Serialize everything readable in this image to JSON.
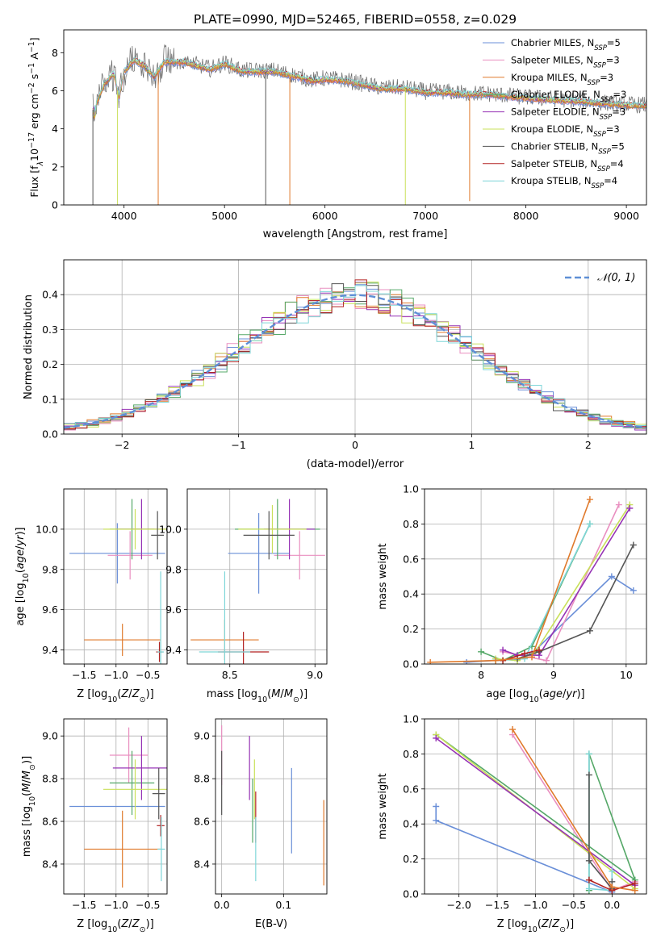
{
  "page_title": "PLATE=0990, MJD=52465, FIBERID=0558, z=0.029",
  "colors": {
    "series": [
      "#6a8fd8",
      "#e98fc0",
      "#e07a2c",
      "#55a868",
      "#9633b5",
      "#c9e05a",
      "#555555",
      "#b22222",
      "#7fd6d8"
    ],
    "gaussian": "#5f8fd6",
    "grid": "#b0b0b0"
  },
  "legend": {
    "model_names": [
      "Chabrier MILES, N",
      "Salpeter MILES, N",
      "Kroupa MILES, N",
      "Chabrier ELODIE, N",
      "Salpeter ELODIE, N",
      "Kroupa ELODIE, N",
      "Chabrier STELIB, N",
      "Salpeter STELIB, N",
      "Kroupa STELIB, N"
    ],
    "n_sub": "SSP",
    "n_values": [
      "=5",
      "=3",
      "=3",
      "=3",
      "=3",
      "=3",
      "=5",
      "=4",
      "=4"
    ],
    "gaussian_label": "𝒩(0, 1)"
  },
  "chart_data": [
    {
      "id": "spectrum",
      "type": "line",
      "xlabel": "wavelength [Angstrom, rest frame]",
      "ylabel": "Flux [f",
      "xlim": [
        3400,
        9200
      ],
      "ylim": [
        0,
        9.2
      ],
      "xticks": [
        4000,
        5000,
        6000,
        7000,
        8000,
        9000
      ],
      "yticks": [
        0,
        2,
        4,
        6,
        8
      ],
      "x_knots": [
        3700,
        3800,
        3900,
        3950,
        4000,
        4100,
        4200,
        4300,
        4400,
        4600,
        4860,
        5000,
        5175,
        5300,
        5500,
        5890,
        6000,
        6200,
        6563,
        6800,
        7000,
        7200,
        7400,
        7600,
        8000,
        8300,
        8600,
        8800,
        9100
      ],
      "y_knots": [
        5.0,
        6.3,
        6.9,
        5.6,
        7.0,
        7.6,
        7.3,
        6.7,
        7.5,
        7.5,
        7.1,
        7.4,
        7.0,
        7.0,
        7.0,
        6.5,
        6.6,
        6.5,
        6.1,
        6.1,
        5.9,
        5.9,
        5.8,
        5.8,
        5.6,
        5.5,
        5.4,
        5.3,
        5.2
      ],
      "dips": [
        {
          "x": 3935,
          "y": 0,
          "series": 5
        },
        {
          "x": 4340,
          "y": 0,
          "series": 2
        },
        {
          "x": 5650,
          "y": 0,
          "series": 2
        },
        {
          "x": 6800,
          "y": 0,
          "series": 5
        },
        {
          "x": 7440,
          "y": 0.2,
          "series": 2
        },
        {
          "x": 3690,
          "y": 0,
          "series": 6
        },
        {
          "x": 5410,
          "y": 0,
          "series": 6
        }
      ]
    },
    {
      "id": "residual-histogram",
      "type": "histogram",
      "xlabel": "(data-model)/error",
      "ylabel": "Normed distribution",
      "xlim": [
        -2.5,
        2.5
      ],
      "ylim": [
        0,
        0.5
      ],
      "xticks": [
        -2,
        -1,
        0,
        1,
        2
      ],
      "yticks": [
        0,
        0.1,
        0.2,
        0.3,
        0.4
      ],
      "bin_width": 0.1,
      "gaussian": {
        "mean": 0,
        "sigma": 1
      }
    },
    {
      "id": "age-vs-metallicity",
      "type": "errorbar",
      "xlabel": "Z [log",
      "ylabel": "age  [log",
      "xlim": [
        -1.82,
        -0.2
      ],
      "ylim": [
        9.33,
        10.2
      ],
      "xticks": [
        -1.5,
        -1.0,
        -0.5
      ],
      "yticks": [
        9.4,
        9.6,
        9.8,
        10.0
      ],
      "points": [
        {
          "x": -0.98,
          "xerr": 0.75,
          "y": 9.88,
          "yerr": 0.15,
          "series": 0
        },
        {
          "x": -0.78,
          "xerr": 0.35,
          "y": 9.87,
          "yerr": 0.12,
          "series": 1
        },
        {
          "x": -0.9,
          "xerr": 0.6,
          "y": 9.45,
          "yerr": 0.08,
          "series": 2
        },
        {
          "x": -0.75,
          "xerr": 0.35,
          "y": 10.0,
          "yerr": 0.15,
          "series": 3
        },
        {
          "x": -0.6,
          "xerr": 0.4,
          "y": 10.0,
          "yerr": 0.15,
          "series": 4
        },
        {
          "x": -0.7,
          "xerr": 0.5,
          "y": 10.0,
          "yerr": 0.1,
          "series": 5
        },
        {
          "x": -0.35,
          "xerr": 0.1,
          "y": 9.97,
          "yerr": 0.12,
          "series": 6
        },
        {
          "x": -0.32,
          "xerr": 0.05,
          "y": 9.39,
          "yerr": 0.05,
          "series": 7
        },
        {
          "x": -0.3,
          "xerr": 0.05,
          "y": 9.39,
          "yerr": 0.4,
          "series": 8
        }
      ]
    },
    {
      "id": "age-vs-mass",
      "type": "errorbar",
      "xlabel": "mass [log",
      "ylabel": "",
      "xlim": [
        8.25,
        9.07
      ],
      "ylim": [
        9.33,
        10.2
      ],
      "xticks": [
        8.5,
        9.0
      ],
      "yticks": [
        9.4,
        9.6,
        9.8,
        10.0
      ],
      "points": [
        {
          "x": 8.67,
          "xerr": 0.18,
          "y": 9.88,
          "yerr": 0.2,
          "series": 0
        },
        {
          "x": 8.91,
          "xerr": 0.15,
          "y": 9.87,
          "yerr": 0.12,
          "series": 1
        },
        {
          "x": 8.47,
          "xerr": 0.2,
          "y": 9.45,
          "yerr": 0.1,
          "series": 2
        },
        {
          "x": 8.78,
          "xerr": 0.25,
          "y": 10.0,
          "yerr": 0.15,
          "series": 3
        },
        {
          "x": 8.85,
          "xerr": 0.15,
          "y": 10.0,
          "yerr": 0.15,
          "series": 4
        },
        {
          "x": 8.75,
          "xerr": 0.2,
          "y": 10.0,
          "yerr": 0.12,
          "series": 5
        },
        {
          "x": 8.73,
          "xerr": 0.15,
          "y": 9.97,
          "yerr": 0.12,
          "series": 6
        },
        {
          "x": 8.58,
          "xerr": 0.15,
          "y": 9.39,
          "yerr": 0.1,
          "series": 7
        },
        {
          "x": 8.47,
          "xerr": 0.15,
          "y": 9.39,
          "yerr": 0.4,
          "series": 8
        }
      ]
    },
    {
      "id": "mass-weight-vs-age",
      "type": "line",
      "xlabel": "age  [log",
      "ylabel": "mass weight",
      "xlim": [
        7.22,
        10.28
      ],
      "ylim": [
        0,
        1
      ],
      "xticks": [
        8,
        9,
        10
      ],
      "yticks": [
        0,
        0.2,
        0.4,
        0.6,
        0.8,
        1.0
      ],
      "series": [
        {
          "series": 0,
          "x": [
            7.8,
            8.5,
            8.7,
            9.8,
            10.1
          ],
          "y": [
            0.01,
            0.03,
            0.06,
            0.5,
            0.42
          ]
        },
        {
          "series": 1,
          "x": [
            8.3,
            8.9,
            9.9
          ],
          "y": [
            0.07,
            0.02,
            0.91
          ]
        },
        {
          "series": 2,
          "x": [
            7.3,
            8.2,
            8.7,
            9.5
          ],
          "y": [
            0.01,
            0.02,
            0.04,
            0.94
          ]
        },
        {
          "series": 3,
          "x": [
            8.0,
            8.3,
            8.7,
            9.5
          ],
          "y": [
            0.07,
            0.02,
            0.1,
            0.8
          ]
        },
        {
          "series": 4,
          "x": [
            8.3,
            8.5,
            8.8,
            10.05
          ],
          "y": [
            0.08,
            0.05,
            0.05,
            0.89
          ]
        },
        {
          "series": 5,
          "x": [
            8.2,
            8.5,
            8.75,
            10.05
          ],
          "y": [
            0.03,
            0.02,
            0.07,
            0.91
          ]
        },
        {
          "series": 6,
          "x": [
            8.5,
            8.8,
            9.5,
            10.1
          ],
          "y": [
            0.03,
            0.07,
            0.19,
            0.68
          ]
        },
        {
          "series": 7,
          "x": [
            8.3,
            8.6,
            8.8
          ],
          "y": [
            0.02,
            0.06,
            0.08
          ]
        },
        {
          "series": 8,
          "x": [
            8.2,
            8.6,
            9.5
          ],
          "y": [
            0.02,
            0.03,
            0.8
          ]
        }
      ]
    },
    {
      "id": "mass-vs-metallicity",
      "type": "errorbar",
      "xlabel": "Z [log",
      "ylabel": "mass [log",
      "xlim": [
        -1.82,
        -0.2
      ],
      "ylim": [
        8.26,
        9.08
      ],
      "xticks": [
        -1.5,
        -1.0,
        -0.5
      ],
      "yticks": [
        8.4,
        8.6,
        8.8,
        9.0
      ],
      "points": [
        {
          "x": -0.98,
          "xerr": 0.75,
          "y": 8.67,
          "yerr": 0.0,
          "series": 0
        },
        {
          "x": -0.8,
          "xerr": 0.3,
          "y": 8.91,
          "yerr": 0.13,
          "series": 1
        },
        {
          "x": -0.9,
          "xerr": 0.6,
          "y": 8.47,
          "yerr": 0.18,
          "series": 2
        },
        {
          "x": -0.75,
          "xerr": 0.35,
          "y": 8.78,
          "yerr": 0.15,
          "series": 3
        },
        {
          "x": -0.6,
          "xerr": 0.45,
          "y": 8.85,
          "yerr": 0.15,
          "series": 4
        },
        {
          "x": -0.7,
          "xerr": 0.5,
          "y": 8.75,
          "yerr": 0.14,
          "series": 5
        },
        {
          "x": -0.33,
          "xerr": 0.1,
          "y": 8.73,
          "yerr": 0.12,
          "series": 6
        },
        {
          "x": -0.3,
          "xerr": 0.06,
          "y": 8.58,
          "yerr": 0.05,
          "series": 7
        },
        {
          "x": -0.29,
          "xerr": 0.06,
          "y": 8.47,
          "yerr": 0.15,
          "series": 8
        }
      ]
    },
    {
      "id": "mass-vs-reddening",
      "type": "errorbar",
      "xlabel": "E(B-V)",
      "ylabel": "",
      "xlim": [
        -0.01,
        0.17
      ],
      "ylim": [
        8.26,
        9.08
      ],
      "xticks": [
        0.0,
        0.1
      ],
      "yticks": [
        8.4,
        8.6,
        8.8,
        9.0
      ],
      "points": [
        {
          "x": 0.113,
          "xerr": 0,
          "y": 8.65,
          "yerr": 0.2,
          "series": 0
        },
        {
          "x": 0.0,
          "xerr": 0,
          "y": 8.91,
          "yerr": 0.14,
          "series": 1
        },
        {
          "x": 0.165,
          "xerr": 0,
          "y": 8.5,
          "yerr": 0.2,
          "series": 2
        },
        {
          "x": 0.05,
          "xerr": 0,
          "y": 8.65,
          "yerr": 0.15,
          "series": 3
        },
        {
          "x": 0.045,
          "xerr": 0,
          "y": 8.85,
          "yerr": 0.15,
          "series": 4
        },
        {
          "x": 0.053,
          "xerr": 0,
          "y": 8.75,
          "yerr": 0.14,
          "series": 5
        },
        {
          "x": 0.0,
          "xerr": 0,
          "y": 8.78,
          "yerr": 0.15,
          "series": 6
        },
        {
          "x": 0.055,
          "xerr": 0,
          "y": 8.62,
          "yerr": 0.12,
          "series": 7
        },
        {
          "x": 0.055,
          "xerr": 0,
          "y": 8.47,
          "yerr": 0.15,
          "series": 8
        }
      ]
    },
    {
      "id": "mass-weight-vs-metallicity",
      "type": "line",
      "xlabel": "Z [log",
      "ylabel": "mass weight",
      "xlim": [
        -2.45,
        0.45
      ],
      "ylim": [
        0,
        1
      ],
      "xticks": [
        -2.0,
        -1.5,
        -1.0,
        -0.5,
        0.0
      ],
      "yticks": [
        0,
        0.2,
        0.4,
        0.6,
        0.8,
        1.0
      ],
      "series": [
        {
          "series": 0,
          "x": [
            -2.3,
            -2.3,
            0.0,
            0.0
          ],
          "y": [
            0.5,
            0.42,
            0.01,
            0.03
          ]
        },
        {
          "series": 1,
          "x": [
            -1.3,
            0.0,
            0.3
          ],
          "y": [
            0.91,
            0.02,
            0.07
          ]
        },
        {
          "series": 2,
          "x": [
            -1.3,
            0.0,
            0.3
          ],
          "y": [
            0.94,
            0.04,
            0.02
          ]
        },
        {
          "series": 3,
          "x": [
            -2.3,
            0.3,
            -0.3,
            -0.3
          ],
          "y": [
            0.91,
            0.08,
            0.8,
            0.02
          ]
        },
        {
          "series": 4,
          "x": [
            -2.3,
            0.3
          ],
          "y": [
            0.89,
            0.05
          ]
        },
        {
          "series": 5,
          "x": [
            -2.3,
            0.3
          ],
          "y": [
            0.91,
            0.03
          ]
        },
        {
          "series": 6,
          "x": [
            -0.3,
            -0.3,
            0.0,
            0.0
          ],
          "y": [
            0.68,
            0.19,
            0.03,
            0.07
          ]
        },
        {
          "series": 7,
          "x": [
            -0.3,
            0.0,
            0.3
          ],
          "y": [
            0.08,
            0.02,
            0.06
          ]
        },
        {
          "series": 8,
          "x": [
            -0.3,
            -0.3,
            0.0,
            0.0
          ],
          "y": [
            0.8,
            0.03,
            0.02,
            0.13
          ]
        }
      ]
    }
  ]
}
